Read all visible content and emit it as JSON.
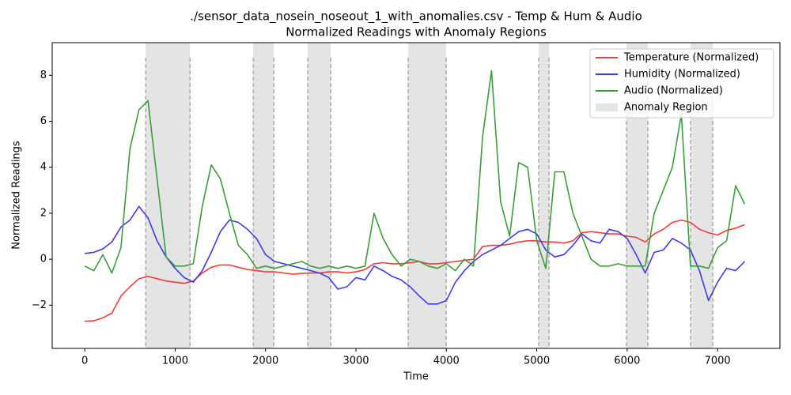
{
  "chart_data": {
    "type": "line",
    "title": "./sensor_data_nosein_noseout_1_with_anomalies.csv - Temp & Hum & Audio",
    "subtitle": "Normalized Readings with Anomaly Regions",
    "x_label": "Time",
    "y_label": "Normalized Readings",
    "xlim": [
      -360,
      7690
    ],
    "ylim": [
      -3.88,
      9.42
    ],
    "xticks": [
      0,
      1000,
      2000,
      3000,
      4000,
      5000,
      6000,
      7000
    ],
    "yticks": [
      {
        "value": -2,
        "label": "−2"
      },
      0,
      2,
      4,
      6,
      8
    ],
    "legend": "upper right",
    "x": [
      0,
      100,
      200,
      300,
      400,
      500,
      600,
      700,
      800,
      900,
      1000,
      1100,
      1200,
      1300,
      1400,
      1500,
      1600,
      1700,
      1800,
      1900,
      2000,
      2100,
      2200,
      2300,
      2400,
      2500,
      2600,
      2700,
      2800,
      2900,
      3000,
      3100,
      3200,
      3300,
      3400,
      3500,
      3600,
      3700,
      3800,
      3900,
      4000,
      4100,
      4200,
      4300,
      4400,
      4500,
      4600,
      4700,
      4800,
      4900,
      5000,
      5100,
      5200,
      5300,
      5400,
      5500,
      5600,
      5700,
      5800,
      5900,
      6000,
      6100,
      6200,
      6300,
      6400,
      6500,
      6600,
      6700,
      6800,
      6900,
      7000,
      7100,
      7200,
      7300
    ],
    "series": [
      {
        "name": "Temperature (Normalized)",
        "color": "#f03c3c",
        "values": [
          -2.7,
          -2.68,
          -2.55,
          -2.35,
          -1.6,
          -1.2,
          -0.85,
          -0.75,
          -0.85,
          -0.95,
          -1.0,
          -1.05,
          -0.95,
          -0.6,
          -0.35,
          -0.25,
          -0.25,
          -0.35,
          -0.45,
          -0.5,
          -0.55,
          -0.55,
          -0.6,
          -0.65,
          -0.62,
          -0.6,
          -0.6,
          -0.55,
          -0.55,
          -0.6,
          -0.55,
          -0.45,
          -0.2,
          -0.15,
          -0.2,
          -0.2,
          -0.15,
          -0.1,
          -0.2,
          -0.2,
          -0.15,
          -0.1,
          -0.05,
          0,
          0.55,
          0.6,
          0.6,
          0.65,
          0.75,
          0.8,
          0.8,
          0.75,
          0.75,
          0.7,
          0.8,
          1.15,
          1.2,
          1.15,
          1.1,
          1.1,
          1.0,
          0.95,
          0.75,
          1.1,
          1.3,
          1.6,
          1.7,
          1.6,
          1.3,
          1.15,
          1.05,
          1.25,
          1.35,
          1.5
        ]
      },
      {
        "name": "Humidity (Normalized)",
        "color": "#3c3ce6",
        "values": [
          0.25,
          0.3,
          0.45,
          0.75,
          1.4,
          1.7,
          2.3,
          1.8,
          0.8,
          0.1,
          -0.4,
          -0.8,
          -1.0,
          -0.5,
          0.3,
          1.2,
          1.7,
          1.6,
          1.3,
          0.9,
          0.2,
          -0.1,
          -0.2,
          -0.3,
          -0.4,
          -0.5,
          -0.6,
          -0.8,
          -1.3,
          -1.2,
          -0.8,
          -0.9,
          -0.3,
          -0.5,
          -0.75,
          -0.9,
          -1.2,
          -1.6,
          -1.95,
          -1.95,
          -1.8,
          -1.0,
          -0.5,
          -0.1,
          0.2,
          0.4,
          0.6,
          0.9,
          1.2,
          1.3,
          1.1,
          0.4,
          0.1,
          0.2,
          0.6,
          1.1,
          0.8,
          0.7,
          1.3,
          1.2,
          0.9,
          0.2,
          -0.6,
          0.3,
          0.4,
          0.9,
          0.7,
          0.4,
          -0.5,
          -1.8,
          -1.0,
          -0.4,
          -0.5,
          -0.1
        ]
      },
      {
        "name": "Audio (Normalized)",
        "color": "#3c9c3c",
        "values": [
          -0.3,
          -0.5,
          0.2,
          -0.6,
          0.5,
          4.8,
          6.5,
          6.9,
          3.5,
          0.1,
          -0.3,
          -0.3,
          -0.2,
          2.3,
          4.1,
          3.5,
          2.0,
          0.6,
          0.2,
          -0.4,
          -0.3,
          -0.4,
          -0.3,
          -0.2,
          -0.1,
          -0.3,
          -0.4,
          -0.3,
          -0.4,
          -0.3,
          -0.4,
          -0.3,
          2.0,
          0.9,
          0.2,
          -0.3,
          0.0,
          -0.1,
          -0.3,
          -0.4,
          -0.2,
          -0.5,
          0.0,
          -0.3,
          5.3,
          8.2,
          2.5,
          1.0,
          4.2,
          4.0,
          0.8,
          -0.4,
          3.8,
          3.8,
          2.0,
          1.0,
          0.0,
          -0.3,
          -0.3,
          -0.2,
          -0.3,
          -0.3,
          -0.3,
          2.0,
          3.0,
          4.0,
          6.3,
          -0.3,
          -0.3,
          -0.4,
          0.5,
          0.8,
          3.2,
          2.4
        ]
      }
    ],
    "region_name": "Anomaly Region",
    "region_color": "#e4e4e4",
    "anomaly_regions": [
      [
        674,
        1164
      ],
      [
        1864,
        2091
      ],
      [
        2467,
        2721
      ],
      [
        3578,
        3998
      ],
      [
        5022,
        5136
      ],
      [
        5993,
        6229
      ],
      [
        6702,
        6947
      ]
    ]
  }
}
